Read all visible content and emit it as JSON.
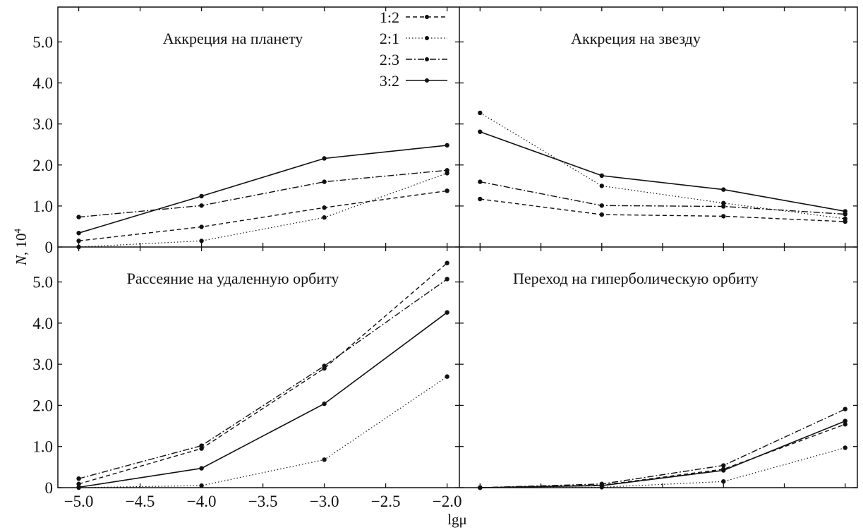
{
  "chart_data": {
    "type": "line",
    "xlabel": "lgμ",
    "ylabel_main": "N",
    "ylabel_sep": ", ",
    "ylabel_unit_base": "10",
    "ylabel_unit_exp": "4",
    "x_ticks": [
      "−5.0",
      "−4.5",
      "−4.0",
      "−3.5",
      "−3.0",
      "−2.5",
      "−2.0"
    ],
    "x_tick_values": [
      -5.0,
      -4.5,
      -4.0,
      -3.5,
      -3.0,
      -2.5,
      -2.0
    ],
    "y_ticks_top": [
      "0",
      "1.0",
      "2.0",
      "3.0",
      "4.0",
      "5.0"
    ],
    "y_ticks_bottom": [
      "0",
      "1.0",
      "2.0",
      "3.0",
      "4.0",
      "5.0"
    ],
    "y_tick_values": [
      0,
      1,
      2,
      3,
      4,
      5
    ],
    "xlim": [
      -5.17,
      -1.9
    ],
    "ylim": [
      0,
      5.85
    ],
    "grid": false,
    "legend_position": "top-center",
    "legend": [
      {
        "name": "1:2",
        "style": "dashed"
      },
      {
        "name": "2:1",
        "style": "dotted"
      },
      {
        "name": "2:3",
        "style": "dashdot"
      },
      {
        "name": "3:2",
        "style": "solid"
      }
    ],
    "x": [
      -5.0,
      -4.0,
      -3.0,
      -2.0
    ],
    "panels": [
      {
        "title": "Аккреция на планету",
        "series": [
          {
            "name": "1:2",
            "values": [
              0.15,
              0.49,
              0.96,
              1.37
            ]
          },
          {
            "name": "2:1",
            "values": [
              0.0,
              0.15,
              0.72,
              1.8
            ]
          },
          {
            "name": "2:3",
            "values": [
              0.73,
              1.01,
              1.59,
              1.87
            ]
          },
          {
            "name": "3:2",
            "values": [
              0.34,
              1.24,
              2.16,
              2.48
            ]
          }
        ]
      },
      {
        "title": "Аккреция на звезду",
        "series": [
          {
            "name": "1:2",
            "values": [
              1.17,
              0.79,
              0.75,
              0.62
            ]
          },
          {
            "name": "2:1",
            "values": [
              3.27,
              1.49,
              1.07,
              0.69
            ]
          },
          {
            "name": "2:3",
            "values": [
              1.59,
              1.01,
              0.99,
              0.8
            ]
          },
          {
            "name": "3:2",
            "values": [
              2.81,
              1.74,
              1.4,
              0.87
            ]
          }
        ]
      },
      {
        "title": "Рассеяние на удаленную орбиту",
        "series": [
          {
            "name": "1:2",
            "values": [
              0.09,
              0.95,
              2.9,
              5.46
            ]
          },
          {
            "name": "2:1",
            "values": [
              0.0,
              0.05,
              0.68,
              2.7
            ]
          },
          {
            "name": "2:3",
            "values": [
              0.22,
              1.02,
              2.96,
              5.07
            ]
          },
          {
            "name": "3:2",
            "values": [
              0.01,
              0.47,
              2.04,
              4.26
            ]
          }
        ]
      },
      {
        "title": "Переход на гиперболическую орбиту",
        "series": [
          {
            "name": "1:2",
            "values": [
              0.0,
              0.06,
              0.45,
              1.54
            ]
          },
          {
            "name": "2:1",
            "values": [
              0.0,
              0.01,
              0.15,
              0.97
            ]
          },
          {
            "name": "2:3",
            "values": [
              0.0,
              0.09,
              0.54,
              1.91
            ]
          },
          {
            "name": "3:2",
            "values": [
              0.0,
              0.05,
              0.42,
              1.62
            ]
          }
        ]
      }
    ]
  }
}
